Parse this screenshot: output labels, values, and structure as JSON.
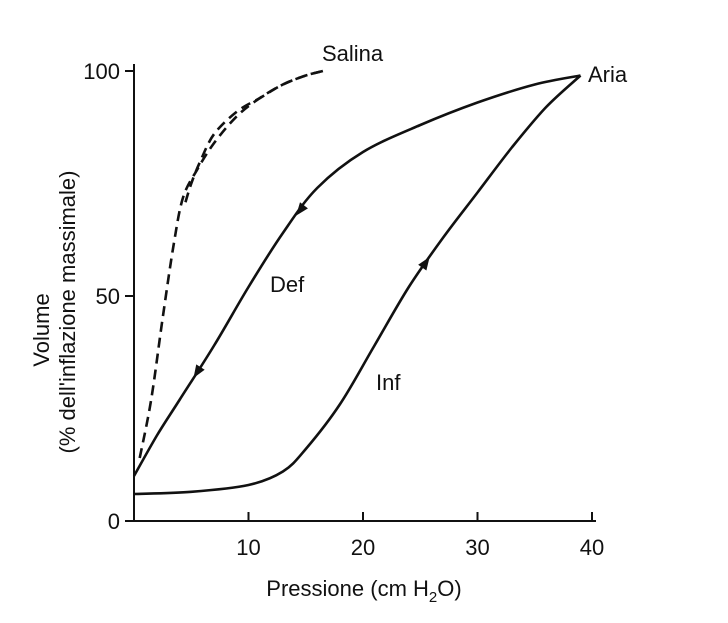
{
  "chart_data": {
    "type": "line",
    "title": "",
    "xlabel_main": "Pressione (cm H",
    "xlabel_sub": "2",
    "xlabel_end": "O)",
    "ylabel_line1": "Volume",
    "ylabel_line2": "(% dell'inflazione massimale)",
    "xlim": [
      0,
      40
    ],
    "ylim": [
      0,
      100
    ],
    "xticks": [
      10,
      20,
      30,
      40
    ],
    "yticks": [
      0,
      50,
      100
    ],
    "grid": false,
    "series": [
      {
        "name": "Inf",
        "medium": "Aria",
        "direction": "inflation",
        "style": "solid",
        "x": [
          0,
          5,
          10,
          13,
          15,
          18,
          21,
          24,
          27,
          30,
          33,
          36,
          39
        ],
        "y": [
          6,
          6.5,
          8,
          11,
          16,
          26,
          39,
          52,
          63,
          73,
          83,
          92,
          99
        ]
      },
      {
        "name": "Def",
        "medium": "Aria",
        "direction": "deflation",
        "style": "solid",
        "x": [
          39,
          35,
          30,
          25,
          20,
          16,
          13,
          10,
          7,
          4,
          2,
          0
        ],
        "y": [
          99,
          97,
          93,
          88,
          82,
          74,
          64,
          52,
          39,
          27,
          19,
          10
        ]
      },
      {
        "name": "Salina",
        "medium": "Salina",
        "direction": "inflation",
        "style": "dashed",
        "x": [
          0.5,
          1.5,
          2.5,
          3.5,
          4.3,
          5.5,
          7,
          9,
          11,
          13,
          15,
          16.5
        ],
        "y": [
          14,
          27,
          45,
          62,
          72,
          78,
          84,
          90,
          94,
          97,
          99,
          100
        ]
      },
      {
        "name": "Salina",
        "medium": "Salina",
        "direction": "deflation",
        "style": "dashed",
        "x": [
          16.5,
          15,
          13,
          11,
          9,
          7,
          5.8,
          5,
          4.4
        ],
        "y": [
          100,
          99,
          97,
          94,
          91,
          86,
          80,
          75,
          70
        ]
      }
    ],
    "labels": {
      "salina": "Salina",
      "aria": "Aria",
      "def": "Def",
      "inf": "Inf"
    }
  }
}
